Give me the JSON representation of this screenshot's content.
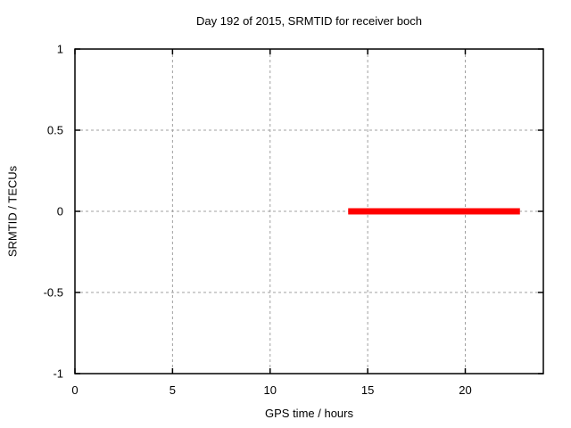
{
  "chart_data": {
    "type": "line",
    "title": "Day 192 of 2015, SRMTID for receiver boch",
    "xlabel": "GPS time / hours",
    "ylabel": "SRMTID / TECUs",
    "xlim": [
      0,
      24
    ],
    "ylim": [
      -1,
      1
    ],
    "xticks": [
      0,
      5,
      10,
      15,
      20
    ],
    "yticks": [
      -1,
      -0.5,
      0,
      0.5,
      1
    ],
    "grid": true,
    "legend": "none",
    "background": "#ffffff",
    "colors": {
      "border": "#000000",
      "grid": "#a0a0a0",
      "text": "#000000",
      "series": "#ff0000"
    },
    "series": [
      {
        "color": "#ff0000",
        "line_width": 7,
        "points": [
          [
            14.0,
            0.0
          ],
          [
            22.8,
            0.0
          ]
        ]
      }
    ]
  }
}
